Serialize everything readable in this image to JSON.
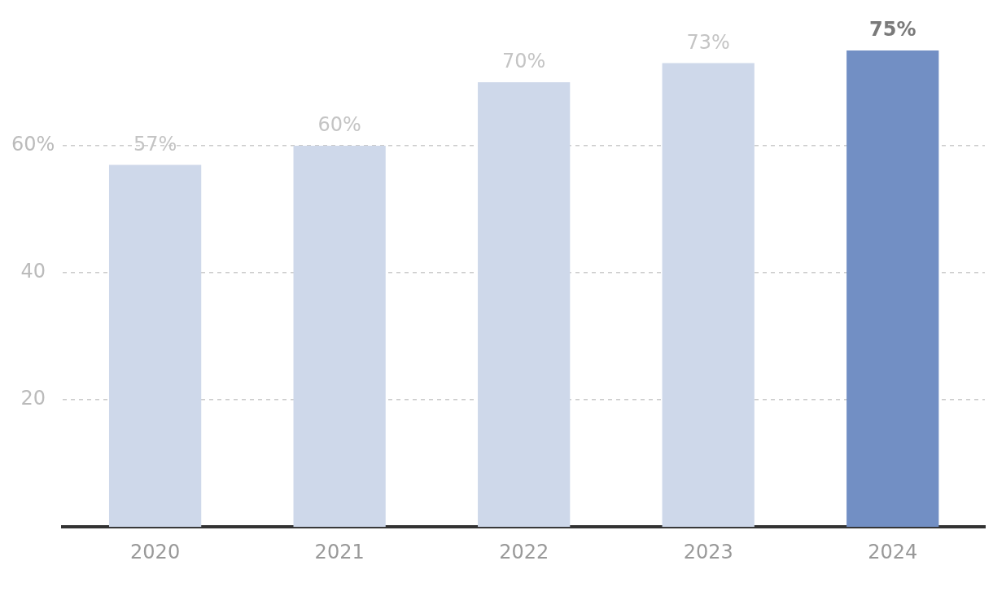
{
  "chart_data": {
    "type": "bar",
    "categories": [
      "2020",
      "2021",
      "2022",
      "2023",
      "2024"
    ],
    "values": [
      57,
      60,
      70,
      73,
      75
    ],
    "colors": [
      "#ced8ea",
      "#ced8ea",
      "#ced8ea",
      "#ced8ea",
      "#728fc4"
    ],
    "value_labels": [
      "57%",
      "60%",
      "70%",
      "73%",
      "75%"
    ],
    "ylim": [
      0,
      75
    ],
    "yticks": [
      20,
      40,
      {
        "value": 60,
        "label": "60%"
      }
    ],
    "grid": "y",
    "legend": false
  }
}
